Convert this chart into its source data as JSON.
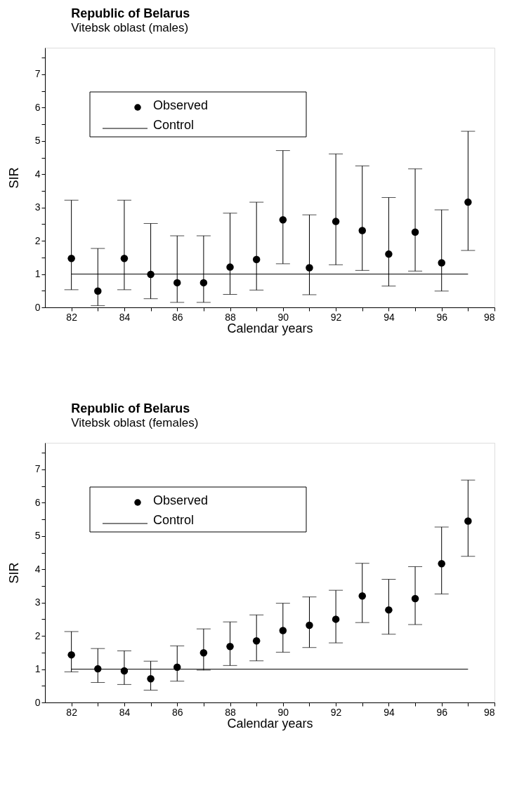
{
  "chart_data": [
    {
      "type": "scatter",
      "title": "Republic of Belarus",
      "subtitle": "Vitebsk oblast (males)",
      "xlabel": "Calendar years",
      "ylabel": "SIR",
      "xlim": [
        81,
        98
      ],
      "ylim": [
        0,
        7.8
      ],
      "xticks": [
        82,
        {
          "value": 83,
          "label": null
        },
        84,
        {
          "value": 85,
          "label": null
        },
        86,
        {
          "value": 87,
          "label": null
        },
        88,
        {
          "value": 89,
          "label": null
        },
        90,
        {
          "value": 91,
          "label": null
        },
        92,
        {
          "value": 93,
          "label": null
        },
        94,
        {
          "value": 95,
          "label": null
        },
        96,
        {
          "value": 97,
          "label": null
        },
        98
      ],
      "yticks": [
        0,
        {
          "value": 0.5,
          "label": null
        },
        1,
        {
          "value": 1.5,
          "label": null
        },
        2,
        {
          "value": 2.5,
          "label": null
        },
        3,
        {
          "value": 3.5,
          "label": null
        },
        4,
        {
          "value": 4.5,
          "label": null
        },
        5,
        {
          "value": 5.5,
          "label": null
        },
        6,
        {
          "value": 6.5,
          "label": null
        },
        7,
        {
          "value": 7.5,
          "label": null
        }
      ],
      "grid": false,
      "legend": "top left",
      "series": [
        {
          "name": "Observed",
          "type": "scatter",
          "marker": "circle",
          "color": "#000000",
          "x": [
            82,
            83,
            84,
            85,
            86,
            87,
            88,
            89,
            90,
            91,
            92,
            93,
            94,
            95,
            96,
            97
          ],
          "values": [
            1.47,
            0.49,
            1.47,
            0.99,
            0.74,
            0.74,
            1.21,
            1.44,
            2.63,
            1.19,
            2.58,
            2.31,
            1.6,
            2.26,
            1.34,
            3.16
          ],
          "errors": [
            [
              0.53,
              3.22
            ],
            [
              0.05,
              1.77
            ],
            [
              0.53,
              3.22
            ],
            [
              0.26,
              2.52
            ],
            [
              0.15,
              2.15
            ],
            [
              0.15,
              2.15
            ],
            [
              0.39,
              2.83
            ],
            [
              0.52,
              3.16
            ],
            [
              1.31,
              4.71
            ],
            [
              0.38,
              2.78
            ],
            [
              1.28,
              4.61
            ],
            [
              1.11,
              4.25
            ],
            [
              0.64,
              3.3
            ],
            [
              1.09,
              4.16
            ],
            [
              0.49,
              2.93
            ],
            [
              1.71,
              5.29
            ]
          ]
        },
        {
          "name": "Control",
          "type": "line",
          "color": "#000000",
          "line_style": "solid",
          "x": [
            82,
            97
          ],
          "values": [
            1,
            1
          ]
        }
      ]
    },
    {
      "type": "scatter",
      "title": "Republic of Belarus",
      "subtitle": "Vitebsk oblast (females)",
      "xlabel": "Calendar years",
      "ylabel": "SIR",
      "xlim": [
        81,
        98
      ],
      "ylim": [
        0,
        7.8
      ],
      "xticks": [
        82,
        {
          "value": 83,
          "label": null
        },
        84,
        {
          "value": 85,
          "label": null
        },
        86,
        {
          "value": 87,
          "label": null
        },
        88,
        {
          "value": 89,
          "label": null
        },
        90,
        {
          "value": 91,
          "label": null
        },
        92,
        {
          "value": 93,
          "label": null
        },
        94,
        {
          "value": 95,
          "label": null
        },
        96,
        {
          "value": 97,
          "label": null
        },
        98
      ],
      "yticks": [
        0,
        {
          "value": 0.5,
          "label": null
        },
        1,
        {
          "value": 1.5,
          "label": null
        },
        2,
        {
          "value": 2.5,
          "label": null
        },
        3,
        {
          "value": 3.5,
          "label": null
        },
        4,
        {
          "value": 4.5,
          "label": null
        },
        5,
        {
          "value": 5.5,
          "label": null
        },
        6,
        {
          "value": 6.5,
          "label": null
        },
        7,
        {
          "value": 7.5,
          "label": null
        }
      ],
      "grid": false,
      "legend": "top left",
      "series": [
        {
          "name": "Observed",
          "type": "scatter",
          "marker": "circle",
          "color": "#000000",
          "x": [
            82,
            83,
            84,
            85,
            86,
            87,
            88,
            89,
            90,
            91,
            92,
            93,
            94,
            95,
            96,
            97
          ],
          "values": [
            1.43,
            1.01,
            0.95,
            0.71,
            1.06,
            1.49,
            1.68,
            1.85,
            2.16,
            2.32,
            2.5,
            3.2,
            2.78,
            3.12,
            4.17,
            5.45
          ],
          "errors": [
            [
              0.92,
              2.13
            ],
            [
              0.6,
              1.62
            ],
            [
              0.54,
              1.55
            ],
            [
              0.37,
              1.24
            ],
            [
              0.64,
              1.7
            ],
            [
              0.97,
              2.21
            ],
            [
              1.11,
              2.42
            ],
            [
              1.25,
              2.63
            ],
            [
              1.51,
              2.98
            ],
            [
              1.65,
              3.17
            ],
            [
              1.79,
              3.37
            ],
            [
              2.4,
              4.18
            ],
            [
              2.05,
              3.7
            ],
            [
              2.34,
              4.08
            ],
            [
              3.26,
              5.27
            ],
            [
              4.39,
              6.68
            ]
          ]
        },
        {
          "name": "Control",
          "type": "line",
          "color": "#000000",
          "line_style": "solid",
          "x": [
            82,
            97
          ],
          "values": [
            1,
            1
          ]
        }
      ]
    }
  ]
}
